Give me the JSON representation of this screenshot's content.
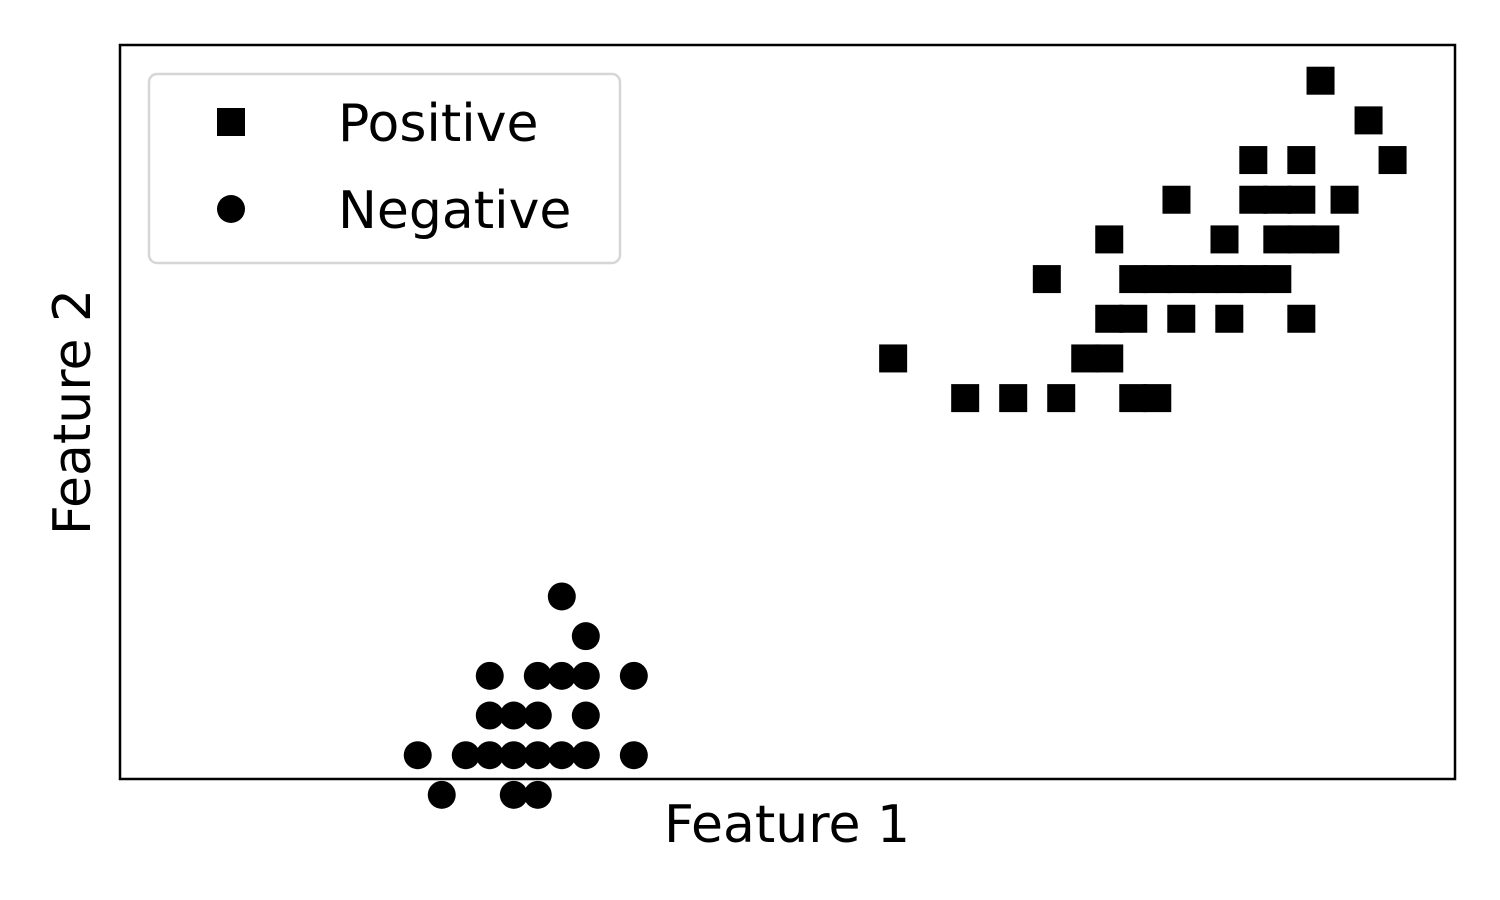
{
  "chart_data": {
    "type": "scatter",
    "title": "",
    "xlabel": "Feature 1",
    "ylabel": "Feature 2",
    "xticks": false,
    "yticks": false,
    "grid": false,
    "legend_position": "top-left",
    "xlim": [
      0,
      13.9
    ],
    "ylim": [
      0.7,
      9.95
    ],
    "marker_color": "#000000",
    "series": [
      {
        "name": "Positive",
        "marker": "square",
        "points": [
          [
            12.5,
            9.5
          ],
          [
            13.0,
            9.0
          ],
          [
            13.25,
            8.5
          ],
          [
            11.8,
            8.5
          ],
          [
            12.3,
            8.5
          ],
          [
            11.0,
            8.0
          ],
          [
            11.8,
            8.0
          ],
          [
            12.05,
            8.0
          ],
          [
            12.3,
            8.0
          ],
          [
            12.75,
            8.0
          ],
          [
            10.3,
            7.5
          ],
          [
            11.5,
            7.5
          ],
          [
            12.05,
            7.5
          ],
          [
            12.3,
            7.5
          ],
          [
            12.55,
            7.5
          ],
          [
            9.65,
            7.0
          ],
          [
            10.55,
            7.0
          ],
          [
            10.8,
            7.0
          ],
          [
            11.05,
            7.0
          ],
          [
            11.3,
            7.0
          ],
          [
            11.55,
            7.0
          ],
          [
            11.8,
            7.0
          ],
          [
            12.05,
            7.0
          ],
          [
            10.3,
            6.5
          ],
          [
            10.55,
            6.5
          ],
          [
            11.05,
            6.5
          ],
          [
            11.55,
            6.5
          ],
          [
            12.3,
            6.5
          ],
          [
            8.05,
            6.0
          ],
          [
            10.05,
            6.0
          ],
          [
            10.3,
            6.0
          ],
          [
            8.8,
            5.5
          ],
          [
            9.3,
            5.5
          ],
          [
            9.8,
            5.5
          ],
          [
            10.55,
            5.5
          ],
          [
            10.8,
            5.5
          ]
        ]
      },
      {
        "name": "Negative",
        "marker": "circle",
        "points": [
          [
            4.6,
            3.0
          ],
          [
            4.85,
            2.5
          ],
          [
            3.85,
            2.0
          ],
          [
            4.35,
            2.0
          ],
          [
            4.6,
            2.0
          ],
          [
            4.85,
            2.0
          ],
          [
            5.35,
            2.0
          ],
          [
            3.85,
            1.5
          ],
          [
            4.1,
            1.5
          ],
          [
            4.35,
            1.5
          ],
          [
            4.85,
            1.5
          ],
          [
            3.1,
            1.0
          ],
          [
            3.6,
            1.0
          ],
          [
            3.85,
            1.0
          ],
          [
            4.1,
            1.0
          ],
          [
            4.35,
            1.0
          ],
          [
            4.6,
            1.0
          ],
          [
            4.85,
            1.0
          ],
          [
            5.35,
            1.0
          ],
          [
            3.35,
            0.5
          ],
          [
            4.1,
            0.5
          ],
          [
            4.35,
            0.5
          ]
        ]
      }
    ]
  }
}
